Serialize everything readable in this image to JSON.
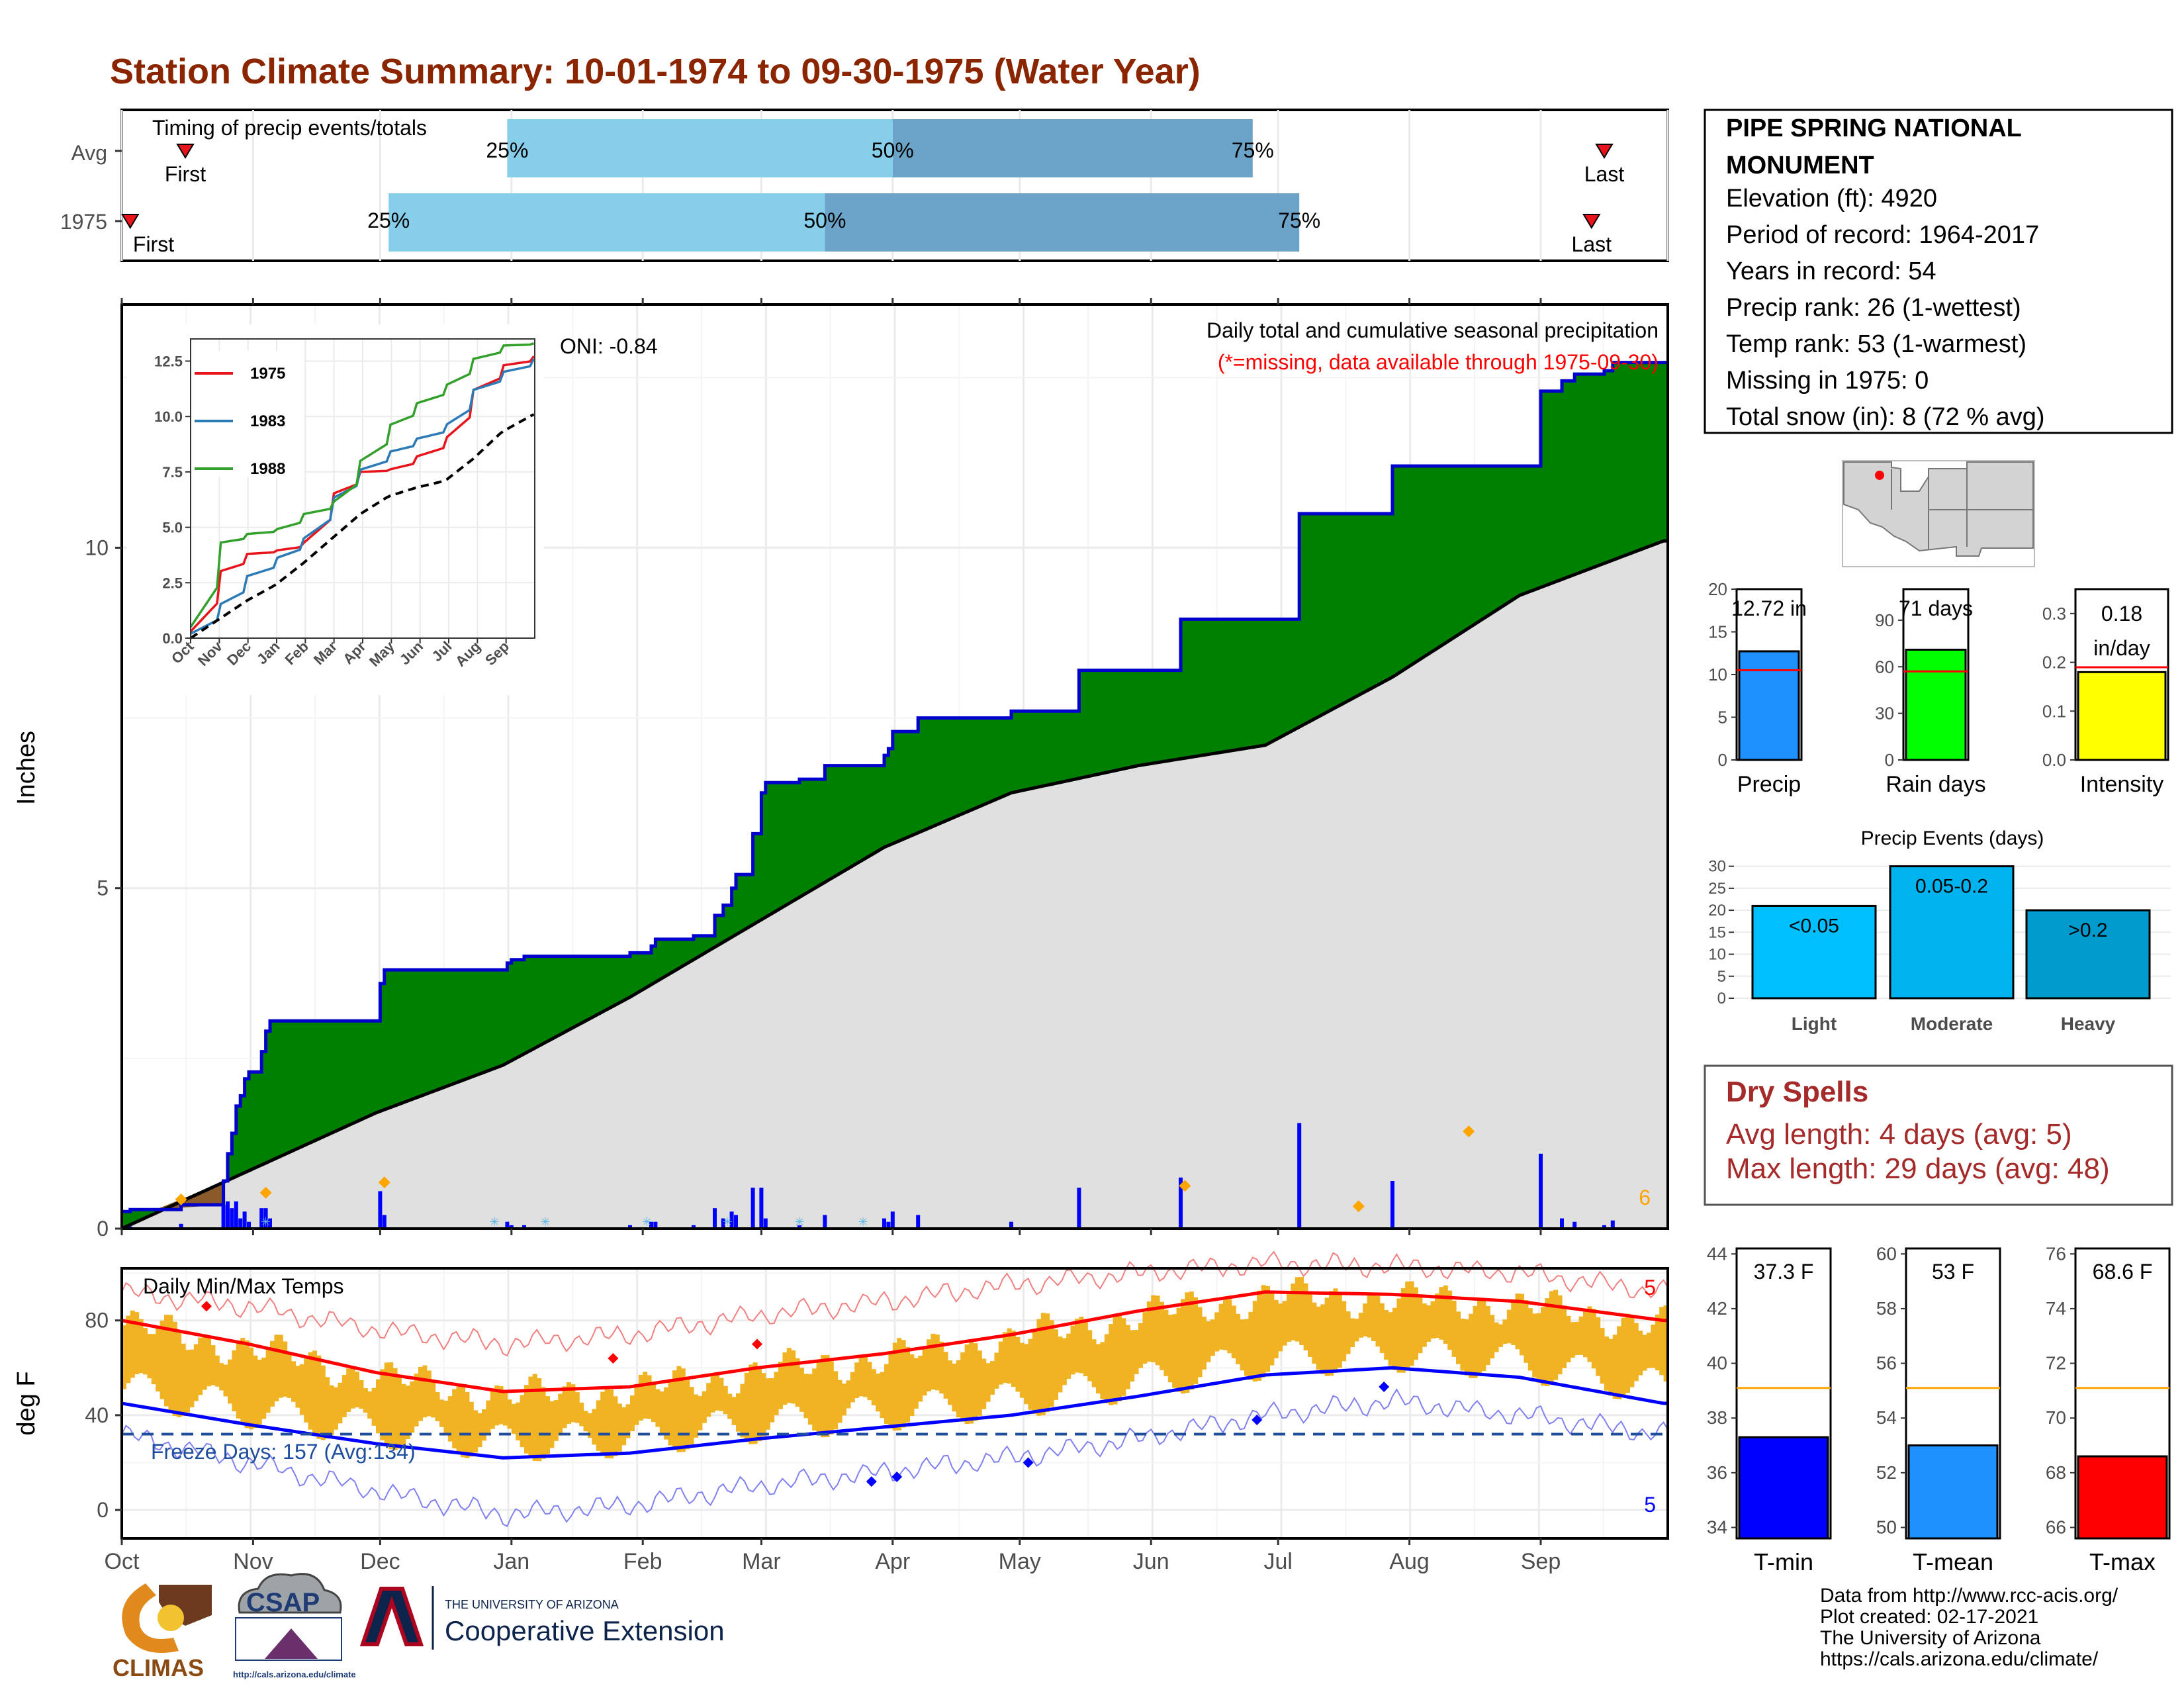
{
  "title": "Station Climate Summary: 10-01-1974 to 09-30-1975 (Water Year)",
  "colors": {
    "title": "#8B2500",
    "light_blue": "#87CEEB",
    "steel_blue": "#6BA3C9",
    "green": "#008000",
    "navy_line": "#0000CD",
    "grey_fill": "#E0E0E0",
    "dark_red": "#A52A2A",
    "orange": "#F0B323",
    "precip_bar": "#1E90FF",
    "rain_bar": "#00FF00",
    "intensity_bar": "#FFFF00",
    "event_light": "#00BFFF",
    "event_mod": "#00B2EE",
    "event_heavy": "#009ACD"
  },
  "timing": {
    "title": "Timing of precip events/totals",
    "rows": [
      {
        "label": "Avg",
        "first": "First",
        "last": "Last",
        "q25": "25%",
        "q50": "50%",
        "q75": "75%",
        "first_day": 15,
        "q25_day": 91,
        "q50_day": 182,
        "q75_day": 267,
        "last_day": 350
      },
      {
        "label": "1975",
        "first": "First",
        "last": "Last",
        "q25": "25%",
        "q50": "50%",
        "q75": "75%",
        "first_day": 2,
        "q25_day": 63,
        "q50_day": 166,
        "q75_day": 278,
        "last_day": 347
      }
    ]
  },
  "main_chart": {
    "ylabel": "Inches",
    "yticks": [
      "0",
      "5",
      "10"
    ],
    "title": "Daily total and cumulative seasonal precipitation",
    "subtitle": "(*=missing, data available through 1975-09-30)",
    "oni": "ONI: -0.84",
    "count_label": "6",
    "months": [
      "Oct",
      "Nov",
      "Dec",
      "Jan",
      "Feb",
      "Mar",
      "Apr",
      "May",
      "Jun",
      "Jul",
      "Aug",
      "Sep"
    ]
  },
  "chart_data": [
    {
      "type": "area",
      "name": "cumulative_precip",
      "xlabel": "",
      "ylabel": "Inches",
      "ylim": [
        0,
        12.6
      ],
      "series": [
        {
          "name": "1975 cumulative",
          "x": [
            0,
            2,
            14,
            24,
            25,
            26,
            27,
            28,
            29,
            30,
            33,
            34,
            35,
            60,
            61,
            62,
            90,
            91,
            92,
            93,
            94,
            95,
            120,
            125,
            126,
            135,
            140,
            142,
            144,
            145,
            148,
            149,
            151,
            152,
            160,
            165,
            166,
            178,
            180,
            181,
            182,
            188,
            192,
            196,
            200,
            210,
            225,
            226,
            237,
            246,
            250,
            277,
            278,
            291,
            300,
            301,
            335,
            340,
            343,
            350,
            352,
            364
          ],
          "y": [
            0.25,
            0.28,
            0.35,
            0.7,
            1.1,
            1.4,
            1.8,
            1.95,
            2.2,
            2.3,
            2.6,
            2.9,
            3.05,
            3.05,
            3.6,
            3.8,
            3.8,
            3.9,
            3.95,
            3.95,
            3.95,
            4.0,
            4.05,
            4.15,
            4.25,
            4.3,
            4.6,
            4.75,
            5.0,
            5.2,
            5.2,
            5.8,
            6.4,
            6.55,
            6.6,
            6.6,
            6.8,
            6.8,
            6.95,
            7.05,
            7.3,
            7.5,
            7.5,
            7.5,
            7.5,
            7.6,
            7.6,
            8.2,
            8.2,
            8.2,
            8.95,
            8.95,
            10.5,
            10.5,
            11.2,
            11.2,
            12.3,
            12.45,
            12.55,
            12.6,
            12.72,
            12.72
          ]
        },
        {
          "name": "average cumulative",
          "x": [
            0,
            30,
            60,
            90,
            120,
            150,
            180,
            210,
            240,
            270,
            300,
            330,
            364
          ],
          "y": [
            0.0,
            0.85,
            1.7,
            2.4,
            3.4,
            4.5,
            5.6,
            6.4,
            6.8,
            7.1,
            8.1,
            9.3,
            10.1
          ]
        }
      ]
    },
    {
      "type": "line",
      "name": "inset_comparison",
      "ylim": [
        0,
        13.5
      ],
      "yticks": [
        "0.0",
        "2.5",
        "5.0",
        "7.5",
        "10.0",
        "12.5"
      ],
      "months": [
        "Oct",
        "Nov",
        "Dec",
        "Jan",
        "Feb",
        "Mar",
        "Apr",
        "May",
        "Jun",
        "Jul",
        "Aug",
        "Sep"
      ],
      "series": [
        {
          "name": "1975",
          "x": [
            0,
            30,
            60,
            90,
            120,
            150,
            180,
            210,
            240,
            270,
            300,
            330,
            364
          ],
          "y": [
            0.3,
            3.0,
            3.8,
            3.95,
            4.3,
            6.5,
            7.5,
            7.6,
            8.2,
            9.0,
            11.2,
            12.3,
            12.72
          ]
        },
        {
          "name": "1983",
          "x": [
            0,
            30,
            60,
            90,
            120,
            150,
            180,
            210,
            240,
            270,
            300,
            330,
            364
          ],
          "y": [
            0.2,
            1.5,
            2.8,
            3.6,
            4.5,
            6.3,
            7.6,
            8.4,
            9.0,
            9.6,
            11.2,
            12.0,
            12.6
          ]
        },
        {
          "name": "1988",
          "x": [
            0,
            30,
            60,
            90,
            120,
            150,
            180,
            210,
            240,
            270,
            300,
            330,
            364
          ],
          "y": [
            0.5,
            4.3,
            4.7,
            4.9,
            5.6,
            6.1,
            8.0,
            9.6,
            10.6,
            11.4,
            12.6,
            13.2,
            13.3
          ]
        },
        {
          "name": "Average",
          "x": [
            0,
            30,
            60,
            90,
            120,
            150,
            180,
            210,
            240,
            270,
            300,
            330,
            364
          ],
          "y": [
            0.0,
            0.85,
            1.7,
            2.4,
            3.4,
            4.5,
            5.6,
            6.4,
            6.8,
            7.1,
            8.1,
            9.3,
            10.1
          ]
        }
      ]
    },
    {
      "type": "line",
      "name": "daily_temps",
      "title": "Daily Min/Max Temps",
      "ylabel": "deg F",
      "ylim": [
        -12,
        102
      ],
      "yticks": [
        "0",
        "40",
        "80"
      ],
      "freeze_label": "Freeze Days: 157 (Avg:134)",
      "freeze_line": 32,
      "max_count_label": "5",
      "min_count_label": "5",
      "series": [
        {
          "name": "avg max",
          "x": [
            0,
            30,
            60,
            90,
            120,
            150,
            180,
            210,
            240,
            270,
            300,
            330,
            364
          ],
          "y": [
            80,
            70,
            58,
            50,
            52,
            60,
            66,
            74,
            84,
            92,
            91,
            88,
            80
          ]
        },
        {
          "name": "avg min",
          "x": [
            0,
            30,
            60,
            90,
            120,
            150,
            180,
            210,
            240,
            270,
            300,
            330,
            364
          ],
          "y": [
            45,
            36,
            28,
            22,
            24,
            30,
            35,
            40,
            48,
            57,
            60,
            56,
            45
          ]
        },
        {
          "name": "record max",
          "x": [
            0,
            30,
            60,
            90,
            120,
            150,
            180,
            210,
            240,
            270,
            300,
            330,
            364
          ],
          "y": [
            92,
            86,
            76,
            70,
            74,
            82,
            88,
            95,
            100,
            104,
            103,
            100,
            92
          ]
        },
        {
          "name": "record min",
          "x": [
            0,
            30,
            60,
            90,
            120,
            150,
            180,
            210,
            240,
            270,
            300,
            330,
            364
          ],
          "y": [
            32,
            20,
            8,
            -2,
            2,
            10,
            16,
            22,
            30,
            40,
            46,
            40,
            32
          ]
        }
      ]
    },
    {
      "type": "bar",
      "name": "totals",
      "panels": [
        {
          "label": "Precip",
          "value_label": "12.72 in",
          "value": 12.72,
          "avg": 10.5,
          "ylim": [
            0,
            20
          ],
          "yticks": [
            "0",
            "5",
            "10",
            "15",
            "20"
          ]
        },
        {
          "label": "Rain days",
          "value_label": "71 days",
          "value": 71,
          "avg": 57,
          "ylim": [
            0,
            110
          ],
          "yticks": [
            "0",
            "30",
            "60",
            "90"
          ]
        },
        {
          "label": "Intensity",
          "value_label": "0.18 in/day",
          "value": 0.18,
          "avg": 0.19,
          "ylim": [
            0,
            0.35
          ],
          "yticks": [
            "0.0",
            "0.1",
            "0.2",
            "0.3"
          ]
        }
      ]
    },
    {
      "type": "bar",
      "name": "precip_events",
      "title": "Precip Events (days)",
      "categories": [
        "Light",
        "Moderate",
        "Heavy"
      ],
      "bar_labels": [
        "<0.05",
        "0.05-0.2",
        ">0.2"
      ],
      "values": [
        21,
        30,
        20
      ],
      "ylim": [
        0,
        31
      ],
      "yticks": [
        "0",
        "5",
        "10",
        "15",
        "20",
        "25",
        "30"
      ]
    },
    {
      "type": "bar",
      "name": "temperature_means",
      "panels": [
        {
          "label": "T-min",
          "value_label": "37.3 F",
          "value": 37.3,
          "avg": 39.1,
          "ylim": [
            33.6,
            44.2
          ],
          "yticks": [
            "34",
            "36",
            "38",
            "40",
            "42",
            "44"
          ]
        },
        {
          "label": "T-mean",
          "value_label": "53 F",
          "value": 53,
          "avg": 55.1,
          "ylim": [
            49.6,
            60.2
          ],
          "yticks": [
            "50",
            "52",
            "54",
            "56",
            "58",
            "60"
          ]
        },
        {
          "label": "T-max",
          "value_label": "68.6 F",
          "value": 68.6,
          "avg": 71.1,
          "ylim": [
            65.6,
            76.2
          ],
          "yticks": [
            "66",
            "68",
            "70",
            "72",
            "74",
            "76"
          ]
        }
      ]
    }
  ],
  "station": {
    "name": "PIPE SPRING NATIONAL MONUMENT",
    "lines": [
      "Elevation (ft): 4920",
      "Period of record: 1964-2017",
      "Years in record: 54",
      "Precip rank: 26 (1-wettest)",
      "Temp rank: 53 (1-warmest)",
      "Missing in 1975: 0",
      "Total snow (in): 8 (72 % avg)"
    ]
  },
  "dry_spells": {
    "title": "Dry Spells",
    "avg": "Avg length: 4 days (avg: 5)",
    "max": "Max length: 29 days (avg: 48)"
  },
  "footer": {
    "lines": [
      "Data from http://www.rcc-acis.org/",
      "Plot created: 02-17-2021",
      "The University of Arizona",
      "https://cals.arizona.edu/climate/"
    ],
    "logo_climas": "CLIMAS",
    "logo_csap": "CSAP",
    "csap_url": "http://cals.arizona.edu/climate",
    "ua_small": "THE UNIVERSITY OF ARIZONA",
    "ua_big": "Cooperative Extension"
  }
}
